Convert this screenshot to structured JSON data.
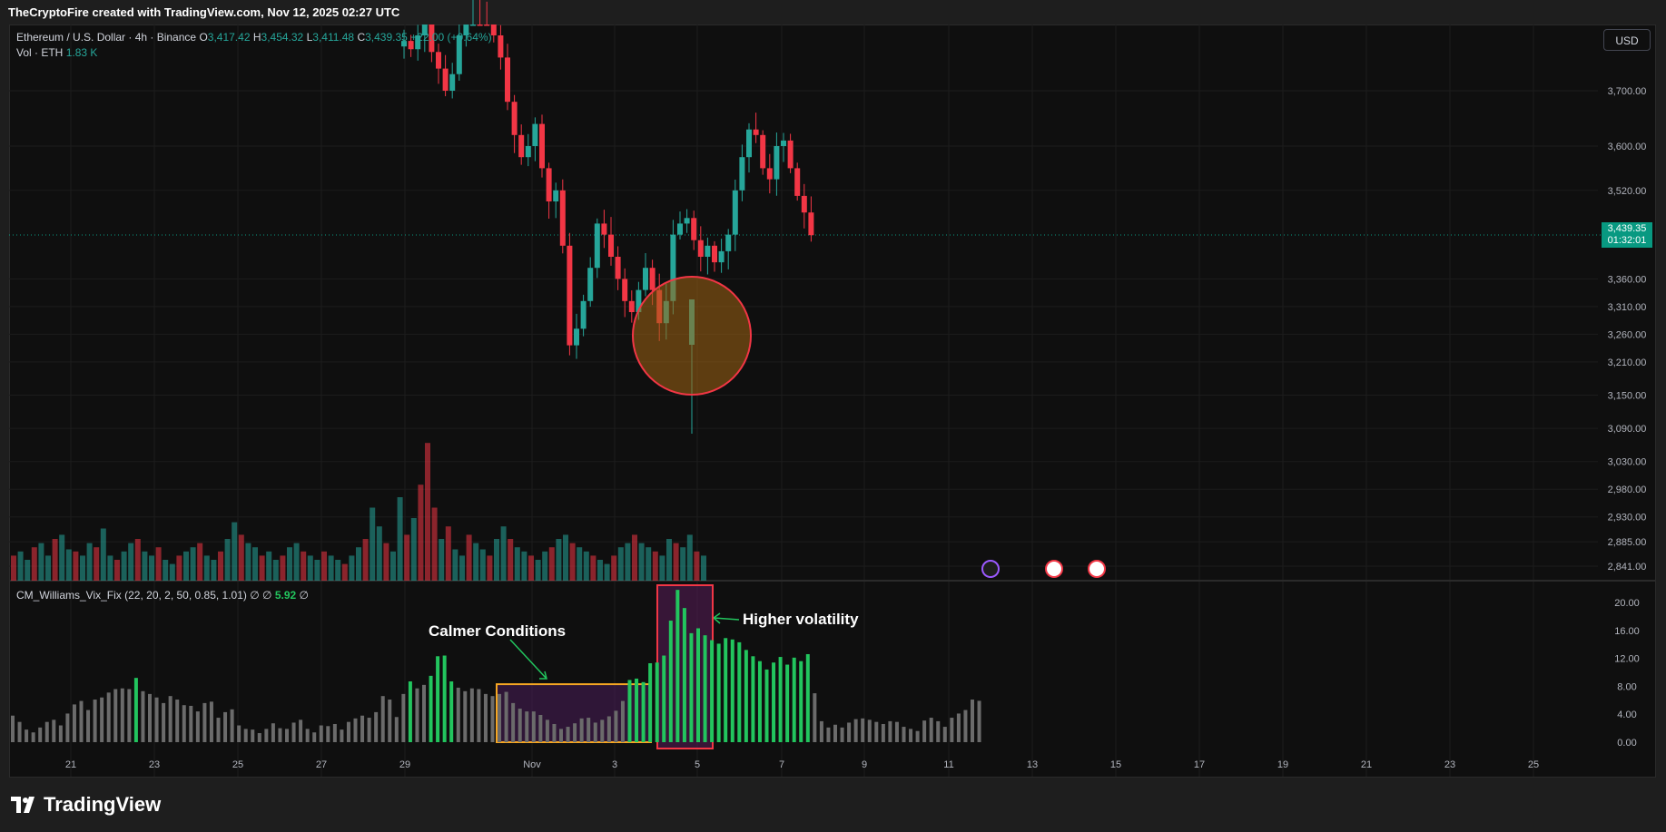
{
  "header": {
    "attribution": "TheCryptoFire created with TradingView.com, Nov 12, 2025 02:27 UTC"
  },
  "legend": {
    "symbol": "Ethereum / U.S. Dollar · 4h · Binance",
    "o_label": "O",
    "o": "3,417.42",
    "h_label": "H",
    "h": "3,454.32",
    "l_label": "L",
    "l": "3,411.48",
    "c_label": "C",
    "c": "3,439.35",
    "change": "+22.00 (+0.64%)",
    "vol_label": "Vol · ETH",
    "vol": "1.83 K"
  },
  "indicator": {
    "name": "CM_Williams_Vix_Fix (22, 20, 2, 50, 0.85, 1.01)",
    "sym1": "∅",
    "sym2": "∅",
    "value": "5.92",
    "sym3": "∅"
  },
  "currency_button": "USD",
  "price_tag": {
    "price": "3,439.35",
    "countdown": "01:32:01"
  },
  "annotations": {
    "calm": "Calmer Conditions",
    "high": "Higher volatility"
  },
  "footer": {
    "brand": "TradingView"
  },
  "colors": {
    "up": "#26a69a",
    "down": "#f23645",
    "vix_high": "#22c55e",
    "vix_low": "#6b6b6b"
  },
  "chart_data": [
    {
      "type": "candlestick",
      "price_axis_ticks": [
        "3,700.00",
        "3,600.00",
        "3,520.00",
        "3,439.35",
        "3,360.00",
        "3,310.00",
        "3,260.00",
        "3,210.00",
        "3,150.00",
        "3,090.00",
        "3,030.00",
        "2,980.00",
        "2,930.00",
        "2,885.00",
        "2,841.00"
      ],
      "price_axis_values": [
        3700,
        3600,
        3520,
        3360,
        3310,
        3260,
        3210,
        3150,
        3090,
        3030,
        2980,
        2930,
        2885,
        2841
      ],
      "x_ticks": [
        "21",
        "23",
        "25",
        "27",
        "29",
        "Nov",
        "3",
        "5",
        "7",
        "9",
        "11",
        "13",
        "15",
        "17",
        "19",
        "21",
        "23",
        "25"
      ],
      "last_price": 3439.35,
      "close_path": [
        3780,
        3790,
        3775,
        3800,
        3820,
        3770,
        3740,
        3700,
        3730,
        3800,
        3900,
        3950,
        3920,
        3880,
        3800,
        3760,
        3680,
        3620,
        3580,
        3600,
        3640,
        3560,
        3500,
        3520,
        3420,
        3240,
        3270,
        3320,
        3380,
        3460,
        3440,
        3400,
        3360,
        3320,
        3300,
        3340,
        3380,
        3340,
        3280,
        3320,
        3440,
        3460,
        3470,
        3430,
        3400,
        3420,
        3390,
        3410,
        3440,
        3520,
        3580,
        3630,
        3620,
        3560,
        3540,
        3600,
        3610,
        3560,
        3510,
        3480,
        3439
      ]
    },
    {
      "type": "bar",
      "series": [
        {
          "name": "Vol · ETH",
          "values": [
            12,
            14,
            10,
            16,
            18,
            12,
            20,
            22,
            15,
            14,
            12,
            18,
            16,
            25,
            12,
            10,
            14,
            18,
            20,
            14,
            12,
            16,
            10,
            8,
            12,
            14,
            16,
            18,
            12,
            10,
            14,
            20,
            28,
            22,
            18,
            16,
            12,
            14,
            10,
            12,
            16,
            18,
            14,
            12,
            10,
            14,
            12,
            10,
            8,
            12,
            16,
            20,
            35,
            26,
            18,
            14,
            40,
            22,
            30,
            46,
            66,
            35,
            20,
            26,
            15,
            12,
            22,
            18,
            15,
            12,
            20,
            26,
            20,
            16,
            14,
            12,
            10,
            14,
            16,
            20,
            22,
            18,
            16,
            14,
            12,
            10,
            8,
            12,
            16,
            18,
            22,
            18,
            16,
            14,
            12,
            20,
            18,
            16,
            22,
            14,
            12
          ]
        }
      ]
    },
    {
      "type": "bar",
      "ylim": [
        0,
        22
      ],
      "y_ticks": [
        "20.00",
        "16.00",
        "12.00",
        "8.00",
        "4.00",
        "0.00"
      ],
      "highlight_threshold": 8.5,
      "series": [
        {
          "name": "CM_Williams_Vix_Fix",
          "values": [
            3.8,
            2.9,
            1.8,
            1.4,
            2.1,
            2.9,
            3.2,
            2.4,
            4.1,
            5.4,
            5.9,
            4.6,
            6.1,
            6.4,
            7.1,
            7.6,
            7.7,
            7.6,
            9.2,
            7.3,
            6.9,
            6.4,
            5.6,
            6.6,
            6.1,
            5.3,
            5.2,
            4.4,
            5.6,
            5.8,
            3.5,
            4.3,
            4.7,
            2.4,
            1.9,
            1.8,
            1.3,
            1.9,
            2.7,
            2.0,
            1.9,
            2.8,
            3.2,
            1.9,
            1.4,
            2.4,
            2.3,
            2.6,
            1.8,
            2.9,
            3.4,
            3.8,
            3.5,
            4.3,
            6.6,
            6.1,
            3.6,
            6.9,
            8.7,
            7.7,
            8.2,
            9.5,
            12.3,
            12.4,
            8.7,
            7.8,
            7.3,
            7.7,
            7.6,
            6.9,
            6.6,
            6.9,
            7.2,
            5.6,
            4.8,
            4.4,
            4.4,
            3.9,
            3.2,
            2.6,
            1.9,
            2.2,
            2.7,
            3.4,
            3.5,
            2.8,
            3.2,
            3.7,
            4.5,
            5.9,
            8.9,
            9.1,
            8.6,
            11.3,
            11.4,
            12.4,
            17.4,
            21.8,
            19.2,
            15.6,
            16.3,
            15.3,
            14.6,
            14.1,
            14.9,
            14.7,
            14.3,
            13.2,
            12.3,
            11.6,
            10.4,
            11.4,
            12.2,
            11.1,
            12.1,
            11.6,
            12.6,
            7.0,
            3.0,
            2.1,
            2.5,
            2.1,
            2.8,
            3.3,
            3.4,
            3.2,
            2.9,
            2.6,
            3.0,
            2.9,
            2.2,
            1.9,
            1.6,
            3.1,
            3.5,
            3.0,
            2.2,
            3.5,
            4.1,
            4.6,
            6.1,
            5.92
          ]
        }
      ]
    }
  ]
}
